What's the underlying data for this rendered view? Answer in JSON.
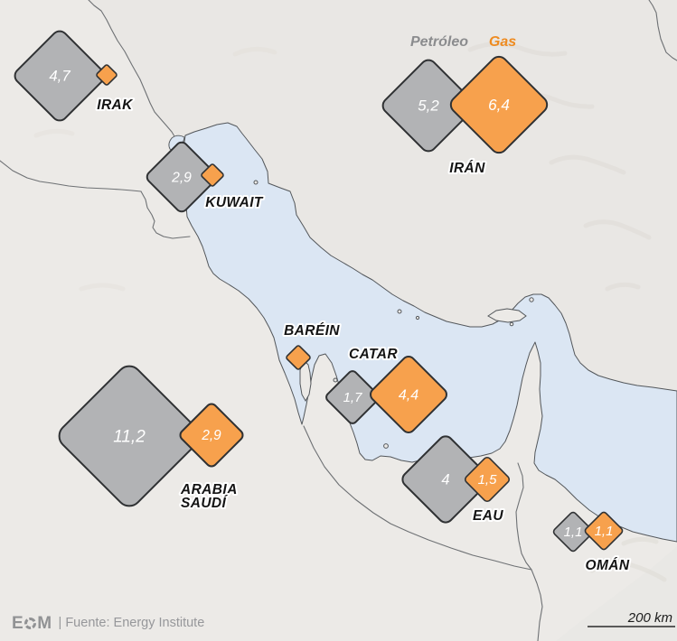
{
  "legend": {
    "oil": "Petróleo",
    "gas": "Gas"
  },
  "scale_bar": {
    "label": "200 km"
  },
  "footer": {
    "logo": "EOM",
    "separator": "|",
    "source": "Fuente: Energy Institute"
  },
  "colors": {
    "oil_fill": "#b2b3b5",
    "gas_fill": "#f7a14d",
    "diamond_outline": "#2f3133",
    "value_text": "#ffffff",
    "legend_oil_text": "#8b8c8e",
    "legend_gas_text": "#ee8b20",
    "label_text": "#141414",
    "water": "#dbe6f3",
    "land": "#eceae7"
  },
  "chart_data": {
    "type": "proportional-symbol-map",
    "legend": [
      "Petróleo",
      "Gas"
    ],
    "symbol_shape": "diamond",
    "countries": [
      {
        "name": "IRAK",
        "oil_value": 4.7,
        "oil_label": "4,7",
        "gas_value": null,
        "gas_label": "",
        "has_oil_symbol": true,
        "has_gas_symbol": true
      },
      {
        "name": "KUWAIT",
        "oil_value": 2.9,
        "oil_label": "2,9",
        "gas_value": null,
        "gas_label": "",
        "has_oil_symbol": true,
        "has_gas_symbol": true
      },
      {
        "name": "IRÁN",
        "oil_value": 5.2,
        "oil_label": "5,2",
        "gas_value": 6.4,
        "gas_label": "6,4",
        "has_oil_symbol": true,
        "has_gas_symbol": true
      },
      {
        "name": "BARÉIN",
        "oil_value": null,
        "oil_label": null,
        "gas_value": null,
        "gas_label": "",
        "has_oil_symbol": false,
        "has_gas_symbol": true
      },
      {
        "name": "CATAR",
        "oil_value": 1.7,
        "oil_label": "1,7",
        "gas_value": 4.4,
        "gas_label": "4,4",
        "has_oil_symbol": true,
        "has_gas_symbol": true
      },
      {
        "name": "ARABIA SAUDÍ",
        "name_lines": [
          "ARABIA",
          "SAUDÍ"
        ],
        "oil_value": 11.2,
        "oil_label": "11,2",
        "gas_value": 2.9,
        "gas_label": "2,9",
        "has_oil_symbol": true,
        "has_gas_symbol": true
      },
      {
        "name": "EAU",
        "oil_value": 4,
        "oil_label": "4",
        "gas_value": 1.5,
        "gas_label": "1,5",
        "has_oil_symbol": true,
        "has_gas_symbol": true
      },
      {
        "name": "OMÁN",
        "oil_value": 1.1,
        "oil_label": "1,1",
        "gas_value": 1.1,
        "gas_label": "1,1",
        "has_oil_symbol": true,
        "has_gas_symbol": true
      }
    ]
  }
}
